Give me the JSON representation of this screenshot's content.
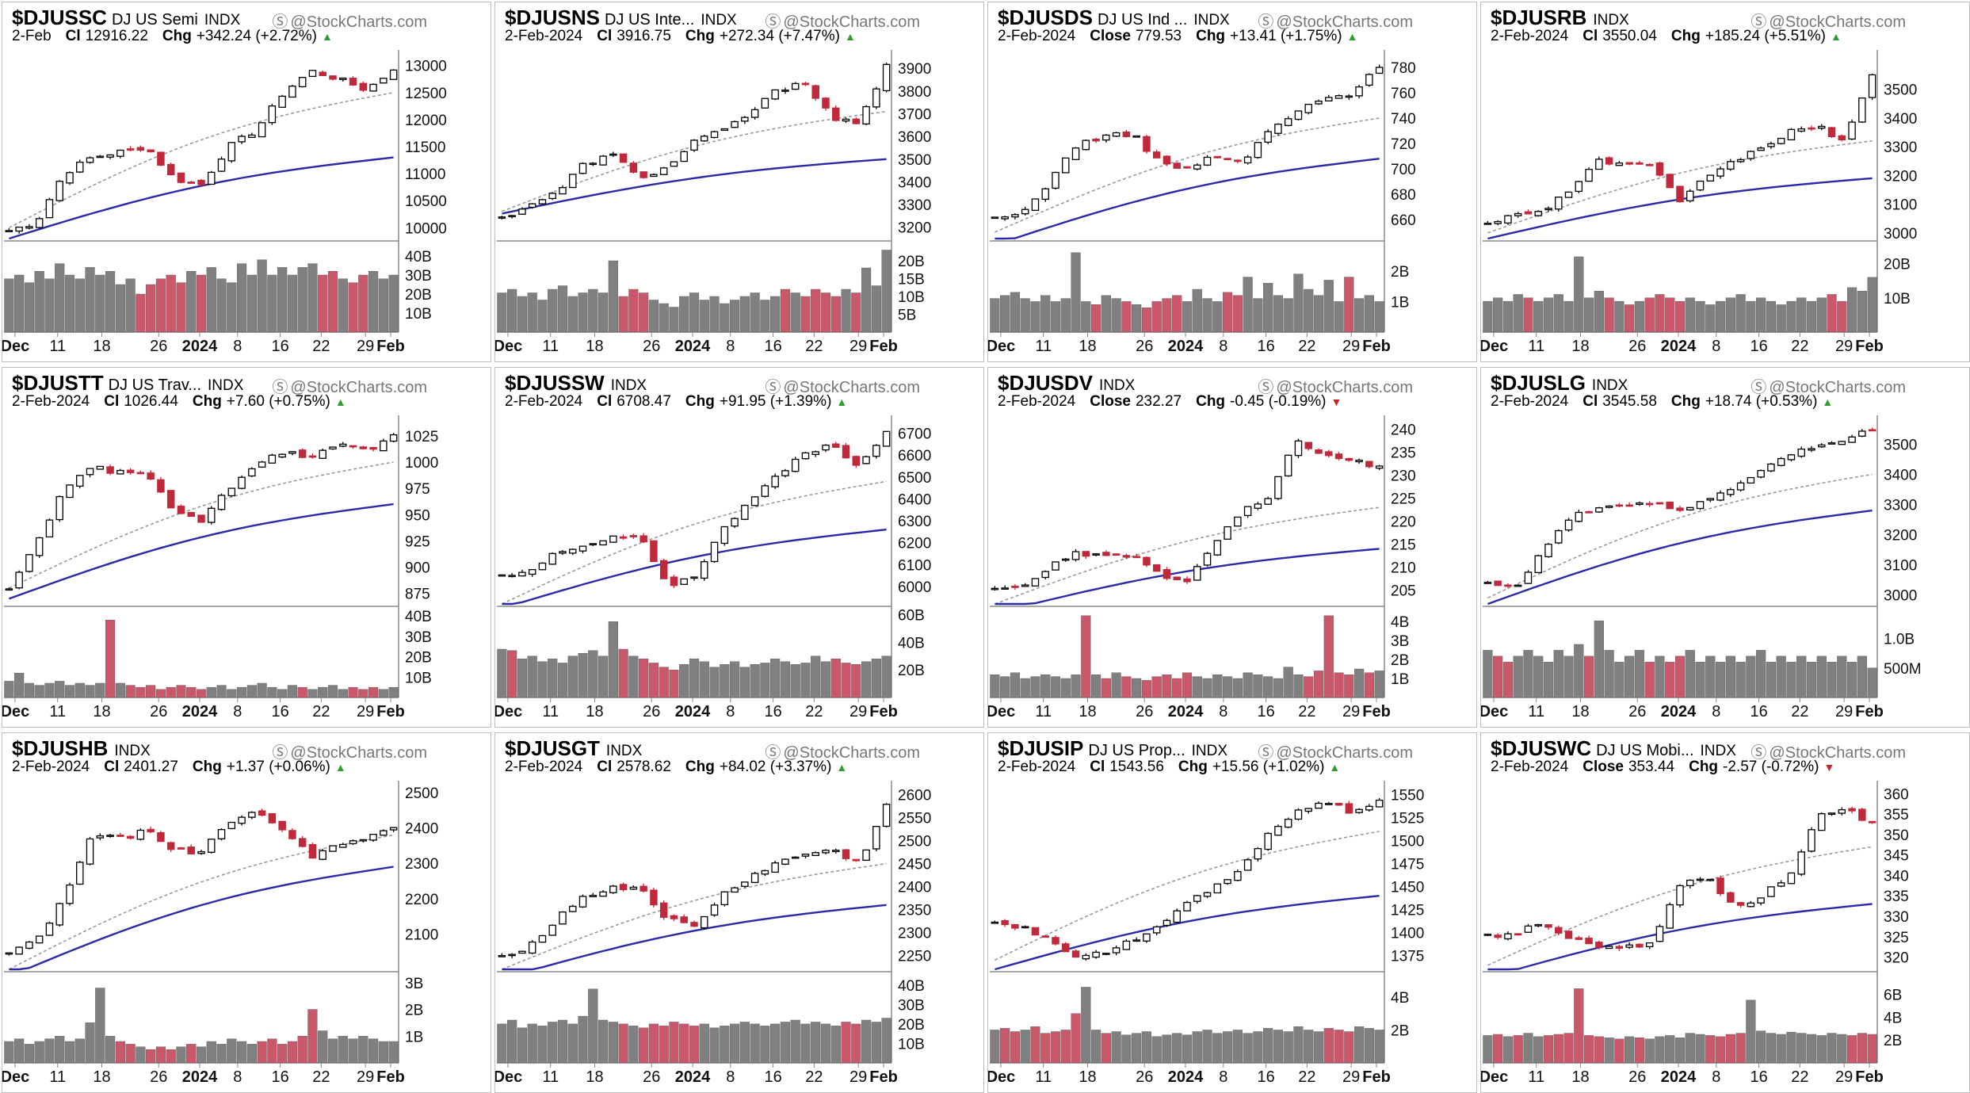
{
  "source_label": "@StockCharts.com",
  "colors": {
    "up": "#000000",
    "down": "#c0293b",
    "ma50": "#2a2aa8",
    "ma20": "#9a9a9a",
    "vol_up": "#808080",
    "vol_down": "#c8586a",
    "grid": "#d6d6d6",
    "trend_up": "#2f9e2f",
    "trend_down": "#cc2222"
  },
  "chart_data": [
    {
      "type": "candlestick",
      "symbol": "$DJUSSC",
      "name": "DJ US Semi",
      "exchange": "INDX",
      "date": "2-Feb",
      "close_label": "Cl",
      "close": "12916.22",
      "chg_label": "Chg",
      "chg": "+342.24 (+2.72%)",
      "trend": "up",
      "price_ticks": [
        "13000",
        "12500",
        "12000",
        "11500",
        "11000",
        "10500",
        "10000"
      ],
      "ylim": [
        9800,
        13200
      ],
      "vol_ticks": [
        "40B",
        "30B",
        "20B",
        "10B"
      ],
      "vol_max": 45,
      "x_ticks": [
        "Dec",
        "11",
        "18",
        "26",
        "2024",
        "8",
        "16",
        "22",
        "29",
        "Feb"
      ],
      "anchors": [
        9950,
        10100,
        11000,
        11300,
        11400,
        11500,
        10900,
        10800,
        11500,
        11800,
        12500,
        12900,
        12750,
        12550,
        12916
      ],
      "volume": [
        28,
        30,
        26,
        32,
        28,
        36,
        30,
        28,
        34,
        30,
        32,
        25,
        28,
        20,
        25,
        28,
        30,
        26,
        32,
        30,
        34,
        28,
        26,
        36,
        30,
        38,
        30,
        34,
        30,
        34,
        36,
        30,
        32,
        28,
        26,
        30,
        32,
        28,
        30
      ],
      "ma50": [
        9800,
        11300
      ],
      "ma20": [
        10000,
        12500
      ]
    },
    {
      "type": "candlestick",
      "symbol": "$DJUSNS",
      "name": "DJ US Inte...",
      "exchange": "INDX",
      "date": "2-Feb-2024",
      "close_label": "Cl",
      "close": "3916.75",
      "chg_label": "Chg",
      "chg": "+272.34 (+7.47%)",
      "trend": "up",
      "price_ticks": [
        "3900",
        "3800",
        "3700",
        "3600",
        "3500",
        "3400",
        "3300",
        "3200"
      ],
      "ylim": [
        3150,
        3960
      ],
      "vol_ticks": [
        "20B",
        "15B",
        "10B",
        "5B"
      ],
      "vol_max": 24,
      "x_ticks": [
        "Dec",
        "11",
        "18",
        "26",
        "2024",
        "8",
        "16",
        "22",
        "29",
        "Feb"
      ],
      "anchors": [
        3240,
        3300,
        3350,
        3480,
        3520,
        3420,
        3460,
        3580,
        3620,
        3700,
        3800,
        3850,
        3680,
        3650,
        3917
      ],
      "volume": [
        11,
        12,
        10,
        11,
        9,
        12,
        13,
        10,
        11,
        12,
        11,
        20,
        10,
        12,
        11,
        9,
        8,
        7,
        10,
        11,
        9,
        10,
        8,
        9,
        10,
        11,
        9,
        10,
        12,
        11,
        10,
        12,
        11,
        10,
        12,
        11,
        18,
        13,
        23
      ],
      "ma50": [
        3260,
        3500
      ],
      "ma20": [
        3270,
        3710
      ]
    },
    {
      "type": "candlestick",
      "symbol": "$DJUSDS",
      "name": "DJ US Ind ...",
      "exchange": "INDX",
      "date": "2-Feb-2024",
      "close_label": "Close",
      "close": "779.53",
      "chg_label": "Chg",
      "chg": "+13.41 (+1.75%)",
      "trend": "up",
      "price_ticks": [
        "780",
        "760",
        "740",
        "720",
        "700",
        "680",
        "660"
      ],
      "ylim": [
        645,
        790
      ],
      "vol_ticks": [
        "2B",
        "1B"
      ],
      "vol_max": 2.8,
      "x_ticks": [
        "Dec",
        "11",
        "18",
        "26",
        "2024",
        "8",
        "16",
        "22",
        "29",
        "Feb"
      ],
      "anchors": [
        660,
        665,
        690,
        720,
        725,
        728,
        705,
        700,
        710,
        705,
        730,
        745,
        755,
        760,
        780
      ],
      "volume": [
        1.1,
        1.2,
        1.3,
        1.1,
        1.0,
        1.2,
        1.0,
        1.1,
        2.6,
        1.0,
        0.9,
        1.2,
        1.1,
        1.0,
        0.9,
        0.8,
        1.0,
        1.1,
        1.2,
        1.0,
        1.4,
        1.1,
        1.0,
        1.3,
        1.2,
        1.8,
        1.1,
        1.6,
        1.2,
        1.1,
        1.9,
        1.4,
        1.2,
        1.7,
        1.0,
        1.8,
        1.1,
        1.2,
        1.0
      ],
      "ma50": [
        640,
        708
      ],
      "ma20": [
        650,
        740
      ]
    },
    {
      "type": "candlestick",
      "symbol": "$DJUSRB",
      "name": "",
      "exchange": "INDX",
      "date": "2-Feb-2024",
      "close_label": "Cl",
      "close": "3550.04",
      "chg_label": "Chg",
      "chg": "+185.24 (+5.51%)",
      "trend": "up",
      "price_ticks": [
        "3500",
        "3400",
        "3300",
        "3200",
        "3100",
        "3000"
      ],
      "ylim": [
        2980,
        3620
      ],
      "vol_ticks": [
        "20B",
        "10B"
      ],
      "vol_max": 25,
      "x_ticks": [
        "Dec",
        "11",
        "18",
        "26",
        "2024",
        "8",
        "16",
        "22",
        "29",
        "Feb"
      ],
      "anchors": [
        3040,
        3060,
        3080,
        3150,
        3250,
        3240,
        3230,
        3100,
        3200,
        3250,
        3300,
        3350,
        3370,
        3320,
        3550
      ],
      "volume": [
        9,
        10,
        9,
        11,
        10,
        9,
        10,
        11,
        9,
        22,
        10,
        12,
        10,
        9,
        8,
        9,
        10,
        11,
        10,
        9,
        10,
        9,
        8,
        9,
        10,
        11,
        9,
        10,
        9,
        8,
        9,
        10,
        9,
        10,
        11,
        9,
        13,
        12,
        16
      ],
      "ma50": [
        2980,
        3190
      ],
      "ma20": [
        3000,
        3320
      ]
    },
    {
      "type": "candlestick",
      "symbol": "$DJUSTT",
      "name": "DJ US Trav...",
      "exchange": "INDX",
      "date": "2-Feb-2024",
      "close_label": "Cl",
      "close": "1026.44",
      "chg_label": "Chg",
      "chg": "+7.60 (+0.75%)",
      "trend": "up",
      "price_ticks": [
        "1025",
        "1000",
        "975",
        "950",
        "925",
        "900",
        "875"
      ],
      "ylim": [
        865,
        1040
      ],
      "vol_ticks": [
        "40B",
        "30B",
        "20B",
        "10B"
      ],
      "vol_max": 42,
      "x_ticks": [
        "Dec",
        "11",
        "18",
        "26",
        "2024",
        "8",
        "16",
        "22",
        "29",
        "Feb"
      ],
      "anchors": [
        880,
        920,
        975,
        995,
        990,
        992,
        950,
        945,
        975,
        1000,
        1010,
        1005,
        1020,
        1010,
        1026
      ],
      "volume": [
        8,
        12,
        7,
        6,
        7,
        8,
        6,
        7,
        6,
        7,
        38,
        7,
        6,
        5,
        6,
        4,
        5,
        6,
        5,
        4,
        5,
        6,
        4,
        5,
        6,
        7,
        5,
        4,
        6,
        5,
        4,
        5,
        6,
        4,
        5,
        4,
        5,
        4,
        5
      ],
      "ma50": [
        870,
        960
      ],
      "ma20": [
        880,
        1000
      ]
    },
    {
      "type": "candlestick",
      "symbol": "$DJUSSW",
      "name": "",
      "exchange": "INDX",
      "date": "2-Feb-2024",
      "close_label": "Cl",
      "close": "6708.47",
      "chg_label": "Chg",
      "chg": "+91.95 (+1.39%)",
      "trend": "up",
      "price_ticks": [
        "6700",
        "6600",
        "6500",
        "6400",
        "6300",
        "6200",
        "6100",
        "6000"
      ],
      "ylim": [
        5920,
        6760
      ],
      "vol_ticks": [
        "60B",
        "40B",
        "20B"
      ],
      "vol_max": 62,
      "x_ticks": [
        "Dec",
        "11",
        "18",
        "26",
        "2024",
        "8",
        "16",
        "22",
        "29",
        "Feb"
      ],
      "anchors": [
        6050,
        6080,
        6150,
        6180,
        6220,
        6230,
        6000,
        6050,
        6250,
        6400,
        6500,
        6600,
        6650,
        6550,
        6708
      ],
      "volume": [
        35,
        34,
        28,
        30,
        26,
        28,
        25,
        30,
        32,
        34,
        30,
        55,
        35,
        30,
        28,
        25,
        22,
        20,
        24,
        28,
        26,
        22,
        24,
        26,
        22,
        24,
        25,
        28,
        26,
        24,
        25,
        30,
        26,
        28,
        25,
        24,
        26,
        28,
        30
      ],
      "ma50": [
        5900,
        6260
      ],
      "ma20": [
        5920,
        6480
      ]
    },
    {
      "type": "candlestick",
      "symbol": "$DJUSDV",
      "name": "",
      "exchange": "INDX",
      "date": "2-Feb-2024",
      "close_label": "Close",
      "close": "232.27",
      "chg_label": "Chg",
      "chg": "-0.45 (-0.19%)",
      "trend": "down",
      "price_ticks": [
        "240",
        "235",
        "230",
        "225",
        "220",
        "215",
        "210",
        "205"
      ],
      "ylim": [
        202,
        242
      ],
      "vol_ticks": [
        "4B",
        "3B",
        "2B",
        "1B"
      ],
      "vol_max": 4.5,
      "x_ticks": [
        "Dec",
        "11",
        "18",
        "26",
        "2024",
        "8",
        "16",
        "22",
        "29",
        "Feb"
      ],
      "anchors": [
        205,
        206,
        210,
        213,
        212,
        213,
        208,
        207,
        215,
        222,
        225,
        238,
        234,
        233,
        232
      ],
      "volume": [
        1.2,
        1.1,
        1.3,
        1.0,
        1.1,
        1.2,
        1.1,
        1.0,
        1.2,
        4.3,
        1.2,
        1.0,
        1.3,
        1.1,
        1.0,
        0.9,
        1.1,
        1.2,
        1.0,
        1.3,
        1.1,
        1.0,
        1.2,
        1.1,
        1.0,
        1.3,
        1.2,
        1.1,
        1.0,
        1.6,
        1.2,
        1.1,
        1.4,
        4.3,
        1.3,
        1.2,
        1.5,
        1.3,
        1.4
      ],
      "ma50": [
        200,
        214
      ],
      "ma20": [
        202,
        223
      ]
    },
    {
      "type": "candlestick",
      "symbol": "$DJUSLG",
      "name": "",
      "exchange": "INDX",
      "date": "2-Feb-2024",
      "close_label": "Cl",
      "close": "3545.58",
      "chg_label": "Chg",
      "chg": "+18.74 (+0.53%)",
      "trend": "up",
      "price_ticks": [
        "3500",
        "3400",
        "3300",
        "3200",
        "3100",
        "3000"
      ],
      "ylim": [
        2970,
        3580
      ],
      "vol_ticks": [
        "1.0B",
        "500M"
      ],
      "vol_max": 1.45,
      "x_ticks": [
        "Dec",
        "11",
        "18",
        "26",
        "2024",
        "8",
        "16",
        "22",
        "29",
        "Feb"
      ],
      "anchors": [
        3050,
        3020,
        3150,
        3260,
        3280,
        3300,
        3310,
        3280,
        3320,
        3350,
        3420,
        3460,
        3500,
        3520,
        3546
      ],
      "volume": [
        0.8,
        0.7,
        0.6,
        0.7,
        0.8,
        0.7,
        0.6,
        0.8,
        0.7,
        0.9,
        0.7,
        1.3,
        0.8,
        0.6,
        0.7,
        0.8,
        0.6,
        0.7,
        0.6,
        0.7,
        0.8,
        0.6,
        0.7,
        0.6,
        0.7,
        0.6,
        0.7,
        0.8,
        0.6,
        0.7,
        0.6,
        0.7,
        0.6,
        0.7,
        0.6,
        0.7,
        0.6,
        0.7,
        0.5
      ],
      "ma50": [
        2970,
        3280
      ],
      "ma20": [
        2990,
        3400
      ]
    },
    {
      "type": "candlestick",
      "symbol": "$DJUSHB",
      "name": "",
      "exchange": "INDX",
      "date": "2-Feb-2024",
      "close_label": "Cl",
      "close": "2401.27",
      "chg_label": "Chg",
      "chg": "+1.37 (+0.06%)",
      "trend": "up",
      "price_ticks": [
        "2500",
        "2400",
        "2300",
        "2200",
        "2100"
      ],
      "ylim": [
        2000,
        2520
      ],
      "vol_ticks": [
        "3B",
        "2B",
        "1B"
      ],
      "vol_max": 3.2,
      "x_ticks": [
        "Dec",
        "11",
        "18",
        "26",
        "2024",
        "8",
        "16",
        "22",
        "29",
        "Feb"
      ],
      "anchors": [
        2050,
        2080,
        2200,
        2380,
        2370,
        2390,
        2340,
        2330,
        2420,
        2440,
        2400,
        2320,
        2350,
        2370,
        2401
      ],
      "volume": [
        0.8,
        0.9,
        0.7,
        0.8,
        0.9,
        1.0,
        0.8,
        0.9,
        1.5,
        2.8,
        1.0,
        0.8,
        0.7,
        0.6,
        0.5,
        0.6,
        0.5,
        0.6,
        0.7,
        0.6,
        0.8,
        0.7,
        0.9,
        0.8,
        0.7,
        0.8,
        0.9,
        0.7,
        0.8,
        1.0,
        2.0,
        1.2,
        0.9,
        1.0,
        0.9,
        1.0,
        0.9,
        0.8,
        0.8
      ],
      "ma50": [
        1980,
        2290
      ],
      "ma20": [
        2000,
        2380
      ]
    },
    {
      "type": "candlestick",
      "symbol": "$DJUSGT",
      "name": "",
      "exchange": "INDX",
      "date": "2-Feb-2024",
      "close_label": "Cl",
      "close": "2578.62",
      "chg_label": "Chg",
      "chg": "+84.02 (+3.37%)",
      "trend": "up",
      "price_ticks": [
        "2600",
        "2550",
        "2500",
        "2450",
        "2400",
        "2350",
        "2300",
        "2250"
      ],
      "ylim": [
        2220,
        2620
      ],
      "vol_ticks": [
        "40B",
        "30B",
        "20B",
        "10B"
      ],
      "vol_max": 44,
      "x_ticks": [
        "Dec",
        "11",
        "18",
        "26",
        "2024",
        "8",
        "16",
        "22",
        "29",
        "Feb"
      ],
      "anchors": [
        2250,
        2270,
        2330,
        2380,
        2395,
        2400,
        2330,
        2310,
        2380,
        2420,
        2450,
        2470,
        2480,
        2450,
        2579
      ],
      "volume": [
        20,
        22,
        18,
        20,
        19,
        21,
        22,
        20,
        24,
        38,
        22,
        21,
        20,
        19,
        18,
        20,
        19,
        21,
        20,
        19,
        20,
        18,
        19,
        20,
        21,
        20,
        19,
        20,
        21,
        22,
        20,
        21,
        20,
        19,
        21,
        20,
        22,
        21,
        23
      ],
      "ma50": [
        2200,
        2360
      ],
      "ma20": [
        2220,
        2450
      ]
    },
    {
      "type": "candlestick",
      "symbol": "$DJUSIP",
      "name": "DJ US Prop...",
      "exchange": "INDX",
      "date": "2-Feb-2024",
      "close_label": "Cl",
      "close": "1543.56",
      "chg_label": "Chg",
      "chg": "+15.56 (+1.02%)",
      "trend": "up",
      "price_ticks": [
        "1550",
        "1525",
        "1500",
        "1475",
        "1450",
        "1425",
        "1400",
        "1375"
      ],
      "ylim": [
        1360,
        1560
      ],
      "vol_ticks": [
        "4B",
        "2B"
      ],
      "vol_max": 5.2,
      "x_ticks": [
        "Dec",
        "11",
        "18",
        "26",
        "2024",
        "8",
        "16",
        "22",
        "29",
        "Feb"
      ],
      "anchors": [
        1410,
        1405,
        1395,
        1370,
        1380,
        1390,
        1410,
        1430,
        1450,
        1470,
        1510,
        1530,
        1545,
        1530,
        1544
      ],
      "volume": [
        2.0,
        2.1,
        1.9,
        2.0,
        2.2,
        1.8,
        1.9,
        2.0,
        3.0,
        4.6,
        2.0,
        1.8,
        1.9,
        1.7,
        1.8,
        1.9,
        1.6,
        1.7,
        1.8,
        1.7,
        1.9,
        2.0,
        1.8,
        1.9,
        2.0,
        1.8,
        1.9,
        2.1,
        2.0,
        1.9,
        2.2,
        2.0,
        1.9,
        2.1,
        2.0,
        1.9,
        2.2,
        2.1,
        2.0
      ],
      "ma50": [
        1360,
        1440
      ],
      "ma20": [
        1370,
        1510
      ]
    },
    {
      "type": "candlestick",
      "symbol": "$DJUSWC",
      "name": "DJ US Mobi...",
      "exchange": "INDX",
      "date": "2-Feb-2024",
      "close_label": "Close",
      "close": "353.44",
      "chg_label": "Chg",
      "chg": "-2.57 (-0.72%)",
      "trend": "down",
      "price_ticks": [
        "360",
        "355",
        "350",
        "345",
        "340",
        "335",
        "330",
        "325",
        "320"
      ],
      "ylim": [
        317,
        362
      ],
      "vol_ticks": [
        "6B",
        "4B",
        "2B"
      ],
      "vol_max": 7.5,
      "x_ticks": [
        "Dec",
        "11",
        "18",
        "26",
        "2024",
        "8",
        "16",
        "22",
        "29",
        "Feb"
      ],
      "anchors": [
        325,
        326,
        328,
        325,
        323,
        322,
        324,
        338,
        340,
        332,
        335,
        340,
        355,
        356,
        353
      ],
      "volume": [
        2.4,
        2.5,
        2.3,
        2.4,
        2.6,
        2.3,
        2.4,
        2.5,
        2.6,
        6.5,
        2.4,
        2.3,
        2.2,
        2.1,
        2.3,
        2.2,
        2.1,
        2.3,
        2.4,
        2.2,
        2.6,
        2.5,
        2.4,
        2.3,
        2.5,
        2.6,
        5.5,
        2.8,
        2.6,
        2.5,
        2.7,
        2.6,
        2.5,
        2.4,
        2.6,
        2.5,
        2.4,
        2.6,
        2.5
      ],
      "ma50": [
        315,
        333
      ],
      "ma20": [
        318,
        347
      ]
    }
  ]
}
